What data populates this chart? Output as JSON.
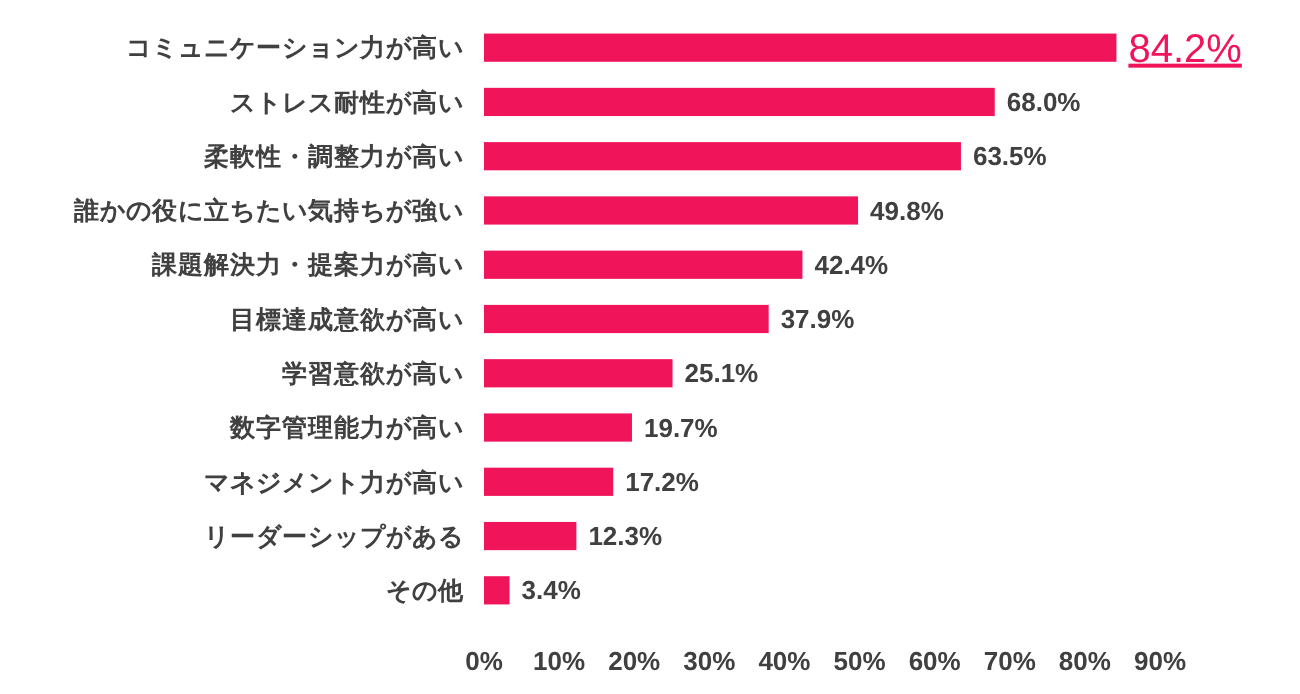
{
  "chart_data": {
    "type": "bar",
    "orientation": "horizontal",
    "categories": [
      "コミュニケーション力が高い",
      "ストレス耐性が高い",
      "柔軟性・調整力が高い",
      "誰かの役に立ちたい気持ちが強い",
      "課題解決力・提案力が高い",
      "目標達成意欲が高い",
      "学習意欲が高い",
      "数字管理能力が高い",
      "マネジメント力が高い",
      "リーダーシップがある",
      "その他"
    ],
    "values": [
      84.2,
      68.0,
      63.5,
      49.8,
      42.4,
      37.9,
      25.1,
      19.7,
      17.2,
      12.3,
      3.4
    ],
    "value_labels": [
      "84.2%",
      "68.0%",
      "63.5%",
      "49.8%",
      "42.4%",
      "37.9%",
      "25.1%",
      "19.7%",
      "17.2%",
      "12.3%",
      "3.4%"
    ],
    "color": "#f0145a",
    "xlim": [
      0,
      90
    ],
    "xticks": [
      {
        "value": 0,
        "label": "0%"
      },
      {
        "value": 10,
        "label": "10%"
      },
      {
        "value": 20,
        "label": "20%"
      },
      {
        "value": 30,
        "label": "30%"
      },
      {
        "value": 40,
        "label": "40%"
      },
      {
        "value": 50,
        "label": "50%"
      },
      {
        "value": 60,
        "label": "60%"
      },
      {
        "value": 70,
        "label": "70%"
      },
      {
        "value": 80,
        "label": "80%"
      },
      {
        "value": 90,
        "label": "90%"
      }
    ],
    "grid": false
  }
}
